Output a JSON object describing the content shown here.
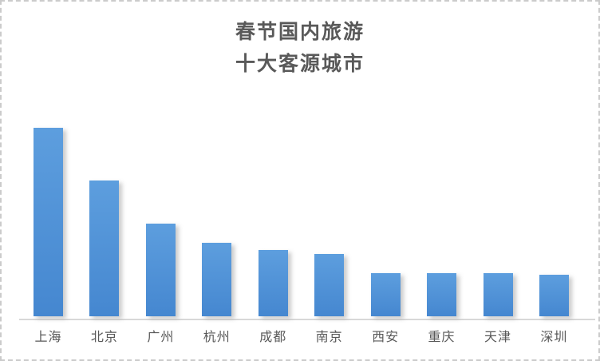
{
  "window": {
    "background": "#ffffff",
    "border_color": "#cbcbcb",
    "border_style": "dashed"
  },
  "chart_data": {
    "type": "bar",
    "title": "春节国内旅游 十大客源城市",
    "title_lines": [
      "春节国内旅游",
      "十大客源城市"
    ],
    "categories": [
      "上海",
      "北京",
      "广州",
      "杭州",
      "成都",
      "南京",
      "西安",
      "重庆",
      "天津",
      "深圳"
    ],
    "values": [
      100,
      72,
      49,
      39,
      35,
      33,
      23,
      23,
      23,
      22
    ],
    "value_note": "relative index estimated from bar heights; no y-axis, gridlines or data labels are visible",
    "xlabel": "",
    "ylabel": "",
    "ylim": [
      0,
      100
    ],
    "grid": false,
    "legend": "none",
    "colors": {
      "bar": "#4f91d7",
      "bar_gradient_top": "#5d9ede",
      "bar_gradient_bottom": "#4587d0",
      "axis_line": "#d8d8d8",
      "title_text": "#595959",
      "label_text": "#595959"
    }
  }
}
